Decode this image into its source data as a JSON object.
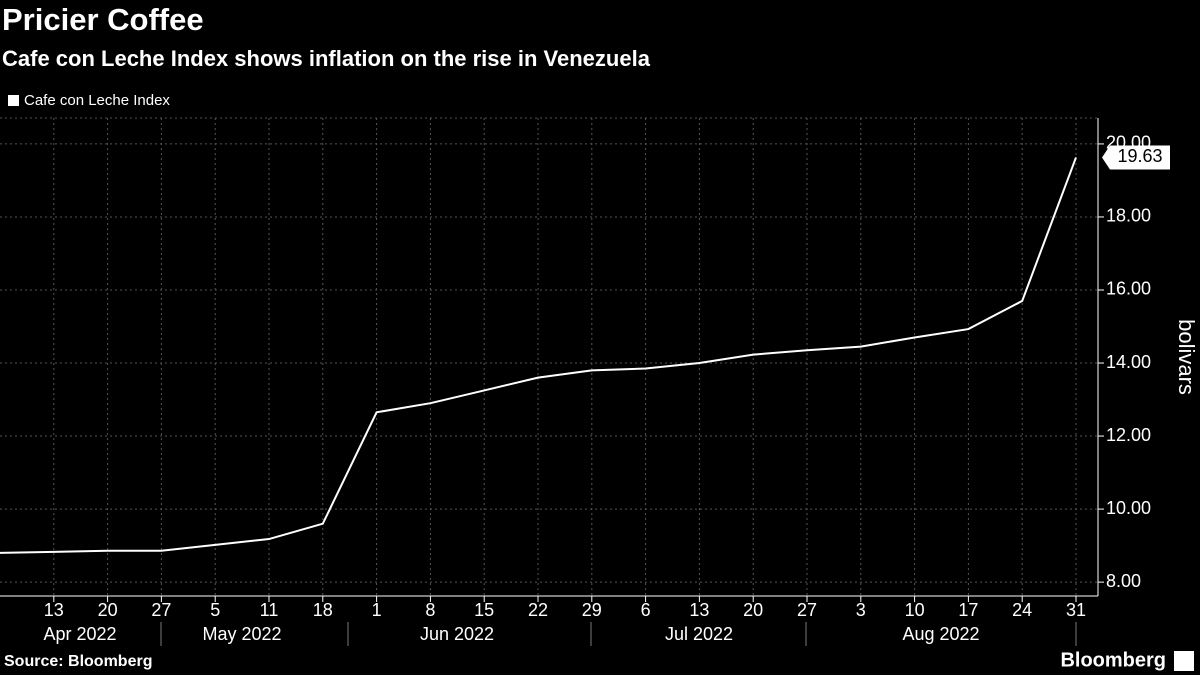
{
  "chart_data": {
    "type": "line",
    "title": "Pricier Coffee",
    "subtitle": "Cafe con Leche Index shows inflation on the rise in Venezuela",
    "categories": [
      null,
      "13",
      "20",
      "27",
      "5",
      "11",
      "18",
      "1",
      "8",
      "15",
      "22",
      "29",
      "6",
      "13",
      "20",
      "27",
      "3",
      "10",
      "17",
      "24",
      "31"
    ],
    "x_groups": [
      "Apr 2022",
      "May 2022",
      "Jun 2022",
      "Jul 2022",
      "Aug 2022"
    ],
    "series": [
      {
        "name": "Cafe con Leche Index",
        "color": "#ffffff",
        "values": [
          8.8,
          8.83,
          8.86,
          8.86,
          9.02,
          9.18,
          9.6,
          12.65,
          12.9,
          13.25,
          13.6,
          13.8,
          13.85,
          14.0,
          14.23,
          14.35,
          14.45,
          14.7,
          14.93,
          15.7,
          19.63
        ]
      }
    ],
    "ylim": [
      7.62,
      20.71
    ],
    "yticks": [
      {
        "value": 8,
        "label": "8.00"
      },
      {
        "value": 10,
        "label": "10.00"
      },
      {
        "value": 12,
        "label": "12.00"
      },
      {
        "value": 14,
        "label": "14.00"
      },
      {
        "value": 16,
        "label": "16.00"
      },
      {
        "value": 18,
        "label": "18.00"
      },
      {
        "value": 20,
        "label": "20.00"
      }
    ],
    "y_axis_label": "bolivars",
    "grid": true,
    "source": "Source: Bloomberg",
    "brand": "Bloomberg"
  }
}
